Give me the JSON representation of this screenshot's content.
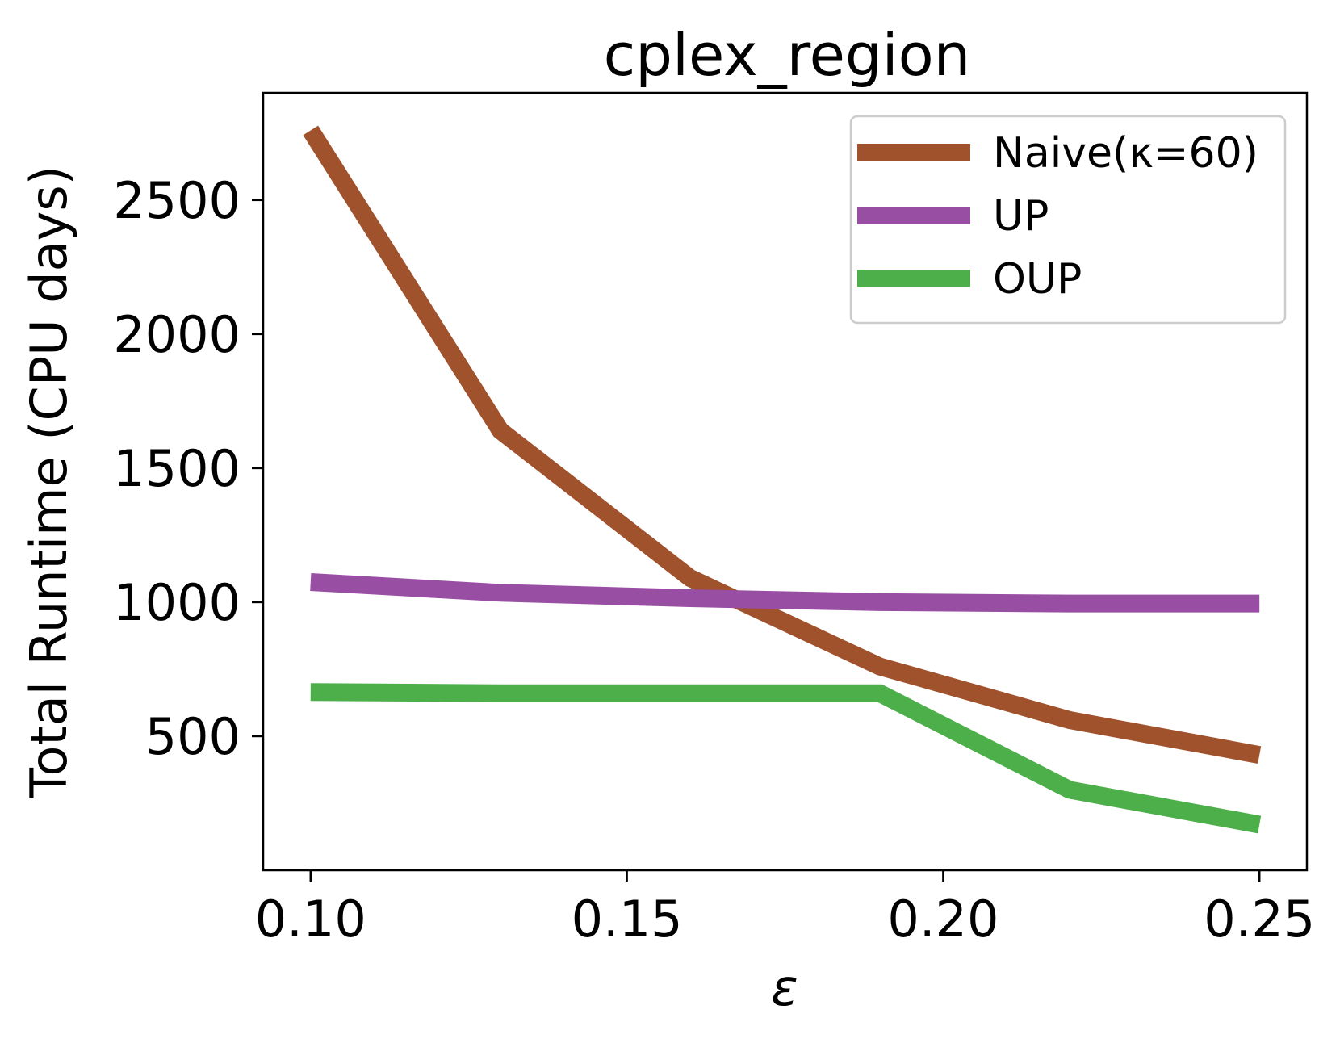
{
  "chart_data": {
    "type": "line",
    "title": "cplex_region",
    "xlabel": "ε",
    "ylabel": "Total Runtime (CPU days)",
    "xlim": [
      0.0925,
      0.2575
    ],
    "ylim": [
      0,
      2900
    ],
    "xticks": [
      0.1,
      0.15,
      0.2,
      0.25
    ],
    "xtick_labels": [
      "0.10",
      "0.15",
      "0.20",
      "0.25"
    ],
    "yticks": [
      500,
      1000,
      1500,
      2000,
      2500
    ],
    "ytick_labels": [
      "500",
      "1000",
      "1500",
      "2000",
      "2500"
    ],
    "grid": false,
    "legend_position": "top-right",
    "x": [
      0.1,
      0.13,
      0.16,
      0.19,
      0.22,
      0.25
    ],
    "series": [
      {
        "name": "Naive(κ=60)",
        "color": "#a0522d",
        "values": [
          2760,
          1640,
          1090,
          760,
          560,
          430
        ]
      },
      {
        "name": "UP",
        "color": "#984ea3",
        "values": [
          1075,
          1035,
          1015,
          1000,
          995,
          995
        ]
      },
      {
        "name": "OUP",
        "color": "#4daf4a",
        "values": [
          665,
          660,
          660,
          660,
          300,
          170
        ]
      }
    ]
  }
}
